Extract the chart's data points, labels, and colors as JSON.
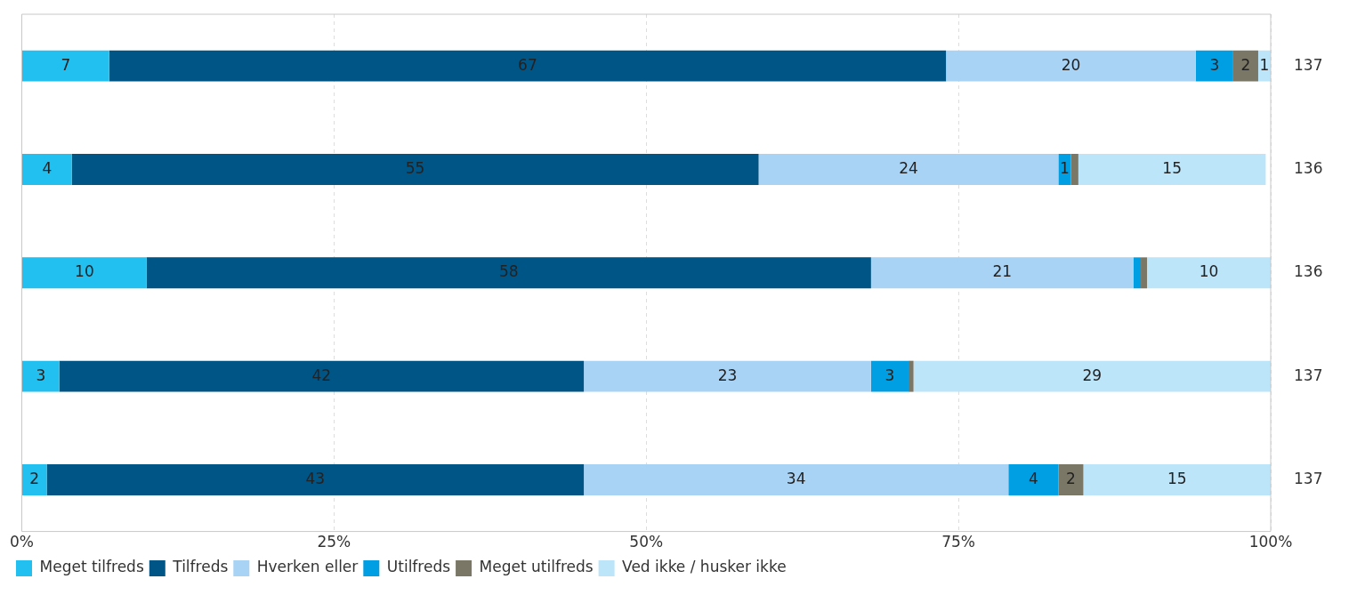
{
  "chart_data": {
    "type": "bar",
    "orientation": "horizontal",
    "stacked": true,
    "categories": [
      null,
      null,
      null,
      null,
      null
    ],
    "series": [
      {
        "name": "Meget tilfreds",
        "color": "#22c0f0",
        "values": [
          7,
          4,
          10,
          3,
          2
        ],
        "value_labels": [
          "7",
          "4",
          "10",
          "3",
          "2"
        ]
      },
      {
        "name": "Tilfreds",
        "color": "#005587",
        "values": [
          67,
          55,
          58,
          42,
          43
        ],
        "value_labels": [
          "67",
          "55",
          "58",
          "42",
          "43"
        ]
      },
      {
        "name": "Hverken eller",
        "color": "#a8d3f5",
        "values": [
          20,
          24,
          21,
          23,
          34
        ],
        "value_labels": [
          "20",
          "24",
          "21",
          "23",
          "34"
        ]
      },
      {
        "name": "Utilfreds",
        "color": "#009fe3",
        "values": [
          3,
          1,
          0.6,
          3,
          4
        ],
        "value_labels": [
          "3",
          "1",
          null,
          "3",
          "4"
        ]
      },
      {
        "name": "Meget utilfreds",
        "color": "#7a7766",
        "values": [
          2,
          0.6,
          0.5,
          0.4,
          2
        ],
        "value_labels": [
          "2",
          null,
          null,
          null,
          "2"
        ]
      },
      {
        "name": "Ved ikke / husker ikke",
        "color": "#bce5fa",
        "values": [
          1,
          15,
          9.9,
          28.6,
          15
        ],
        "value_labels": [
          "1",
          "15",
          "10",
          "29",
          "15"
        ]
      }
    ],
    "xlim": [
      0,
      100
    ],
    "xticks": [
      {
        "value": 0,
        "label": "0%"
      },
      {
        "value": 25,
        "label": "25%"
      },
      {
        "value": 50,
        "label": "50%"
      },
      {
        "value": 75,
        "label": "75%"
      },
      {
        "value": 100,
        "label": "100%"
      }
    ],
    "grid": "x",
    "legend": "bottom left",
    "annotations": [
      "137",
      "136",
      "136",
      "137",
      "137"
    ]
  }
}
